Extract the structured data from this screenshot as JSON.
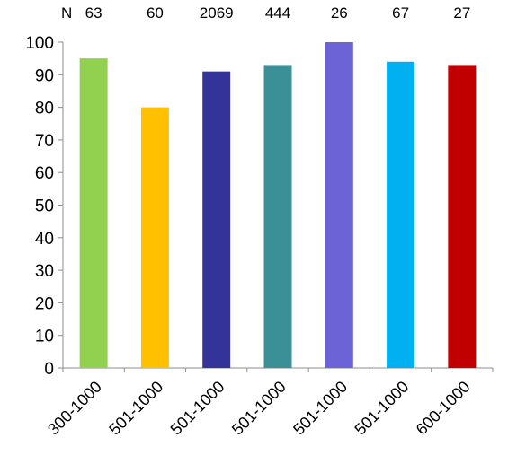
{
  "chart_data": {
    "type": "bar",
    "categories": [
      "300-1000",
      "501-1000",
      "501-1000",
      "501-1000",
      "501-1000",
      "501-1000",
      "600-1000"
    ],
    "values": [
      95,
      80,
      91,
      93,
      100,
      94,
      93
    ],
    "n_prefix": "N",
    "n_labels": [
      "63",
      "60",
      "2069",
      "444",
      "26",
      "67",
      "27"
    ],
    "colors": [
      "#92d050",
      "#ffc000",
      "#333399",
      "#3b8f97",
      "#6b63d6",
      "#00b0f0",
      "#c00000"
    ],
    "ylim": [
      0,
      100
    ],
    "yticks": [
      0,
      10,
      20,
      30,
      40,
      50,
      60,
      70,
      80,
      90,
      100
    ],
    "grid": false,
    "title": "",
    "xlabel": "",
    "ylabel": ""
  }
}
